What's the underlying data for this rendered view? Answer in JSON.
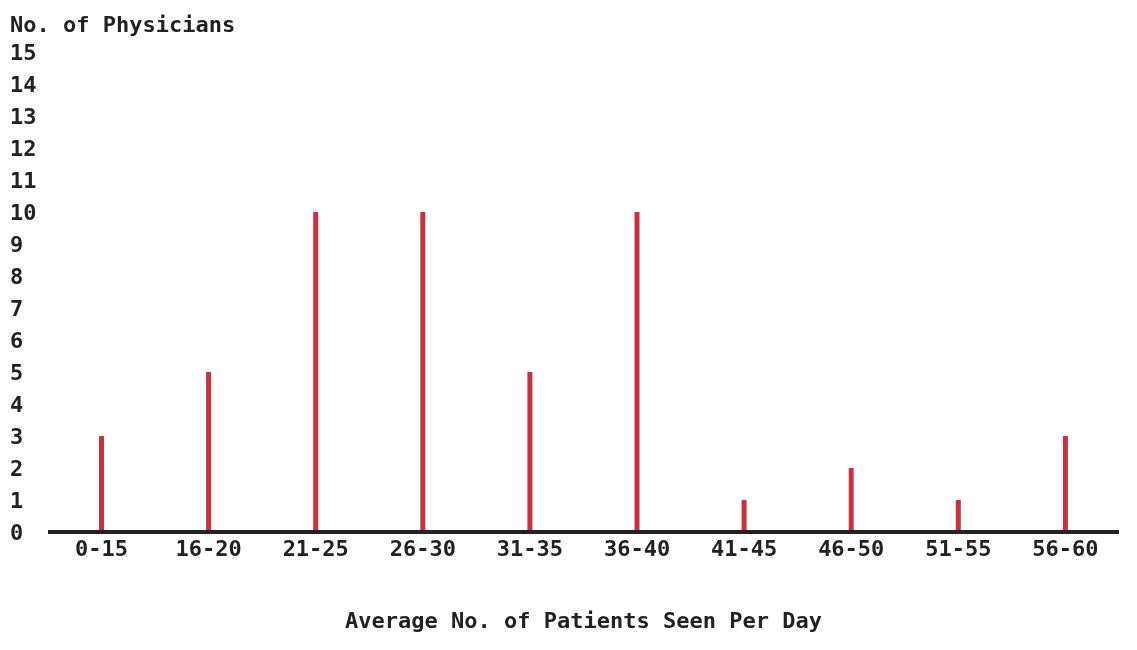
{
  "chart_data": {
    "type": "bar",
    "ylabel": "No. of Physicians",
    "xlabel": "Average No. of Patients Seen Per Day",
    "categories": [
      "0-15",
      "16-20",
      "21-25",
      "26-30",
      "31-35",
      "36-40",
      "41-45",
      "46-50",
      "51-55",
      "56-60"
    ],
    "values": [
      3,
      5,
      10,
      10,
      5,
      10,
      1,
      2,
      1,
      3
    ],
    "color": "#c8323c",
    "ylim": [
      0,
      15
    ],
    "yticks": [
      0,
      1,
      2,
      3,
      4,
      5,
      6,
      7,
      8,
      9,
      10,
      11,
      12,
      13,
      14,
      15
    ]
  }
}
